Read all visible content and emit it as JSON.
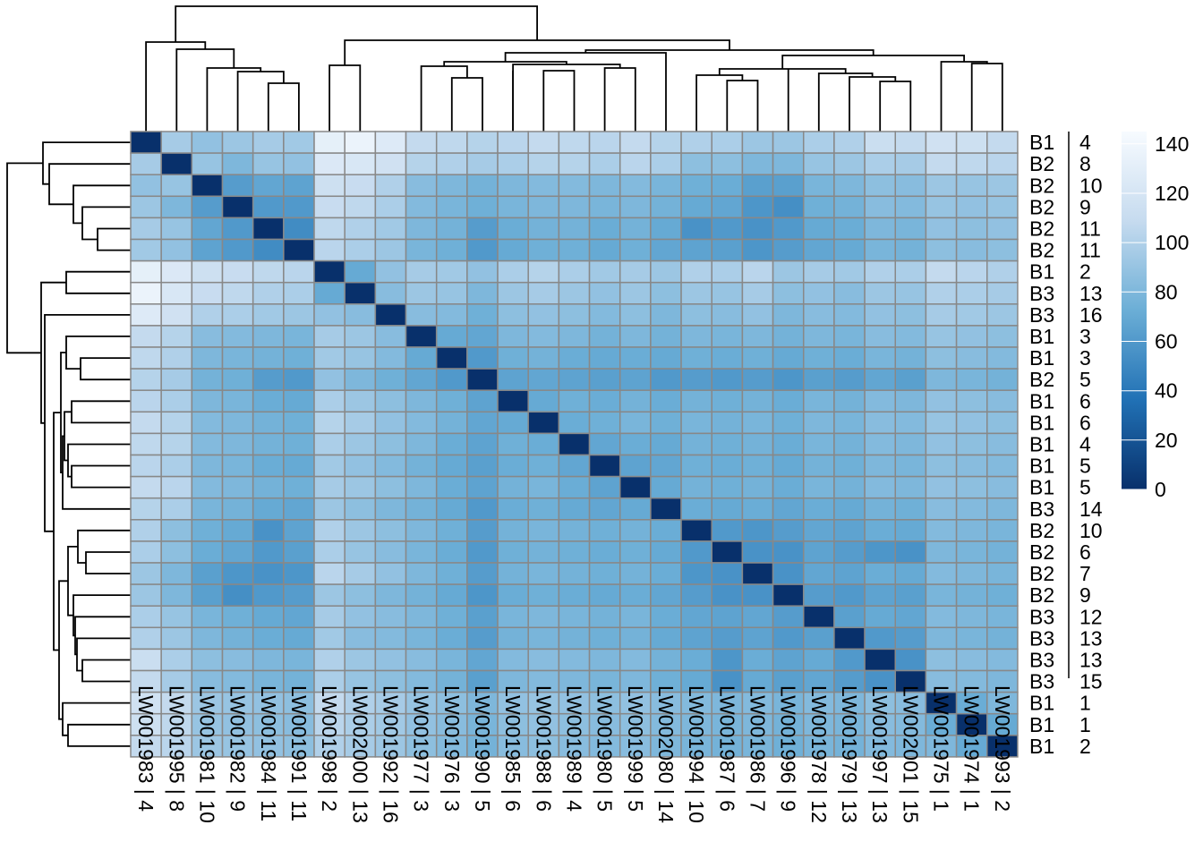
{
  "chart_data": {
    "type": "heatmap",
    "columns": [
      "LW001983 | 4",
      "LW001995 | 8",
      "LW001981 | 10",
      "LW001982 | 9",
      "LW001984 | 11",
      "LW001991 | 11",
      "LW001998 | 2",
      "LW002000 | 13",
      "LW001992 | 16",
      "LW001977 | 3",
      "LW001976 | 3",
      "LW001990 | 5",
      "LW001985 | 6",
      "LW001988 | 6",
      "LW001989 | 4",
      "LW001980 | 5",
      "LW001999 | 5",
      "LW002080 | 14",
      "LW001994 | 10",
      "LW001987 | 6",
      "LW001986 | 7",
      "LW001996 | 9",
      "LW001978 | 12",
      "LW001979 | 13",
      "LW001997 | 13",
      "LW002001 | 15",
      "LW001975 | 1",
      "LW001974 | 1",
      "LW001993 | 2"
    ],
    "rows": [
      {
        "batch": "B1",
        "num": "4"
      },
      {
        "batch": "B2",
        "num": "8"
      },
      {
        "batch": "B2",
        "num": "10"
      },
      {
        "batch": "B2",
        "num": "9"
      },
      {
        "batch": "B2",
        "num": "11"
      },
      {
        "batch": "B2",
        "num": "11"
      },
      {
        "batch": "B1",
        "num": "2"
      },
      {
        "batch": "B3",
        "num": "13"
      },
      {
        "batch": "B3",
        "num": "16"
      },
      {
        "batch": "B1",
        "num": "3"
      },
      {
        "batch": "B1",
        "num": "3"
      },
      {
        "batch": "B2",
        "num": "5"
      },
      {
        "batch": "B1",
        "num": "6"
      },
      {
        "batch": "B1",
        "num": "6"
      },
      {
        "batch": "B1",
        "num": "4"
      },
      {
        "batch": "B1",
        "num": "5"
      },
      {
        "batch": "B1",
        "num": "5"
      },
      {
        "batch": "B3",
        "num": "14"
      },
      {
        "batch": "B2",
        "num": "10"
      },
      {
        "batch": "B2",
        "num": "6"
      },
      {
        "batch": "B2",
        "num": "7"
      },
      {
        "batch": "B2",
        "num": "9"
      },
      {
        "batch": "B3",
        "num": "12"
      },
      {
        "batch": "B3",
        "num": "13"
      },
      {
        "batch": "B3",
        "num": "13"
      },
      {
        "batch": "B3",
        "num": "15"
      },
      {
        "batch": "B1",
        "num": "1"
      },
      {
        "batch": "B1",
        "num": "1"
      },
      {
        "batch": "B1",
        "num": "2"
      }
    ],
    "values": [
      [
        0,
        96,
        88,
        92,
        96,
        94,
        132,
        136,
        126,
        108,
        106,
        102,
        104,
        108,
        106,
        104,
        108,
        102,
        100,
        98,
        92,
        92,
        98,
        100,
        112,
        108,
        116,
        114,
        108
      ],
      [
        96,
        0,
        90,
        80,
        90,
        88,
        124,
        122,
        116,
        102,
        100,
        96,
        98,
        102,
        102,
        98,
        104,
        98,
        86,
        86,
        80,
        80,
        90,
        92,
        98,
        96,
        108,
        106,
        104
      ],
      [
        88,
        90,
        0,
        62,
        68,
        66,
        114,
        110,
        100,
        84,
        80,
        76,
        80,
        82,
        82,
        80,
        82,
        78,
        74,
        72,
        64,
        64,
        78,
        80,
        86,
        84,
        92,
        90,
        92
      ],
      [
        92,
        80,
        62,
        0,
        60,
        60,
        110,
        106,
        98,
        82,
        78,
        74,
        78,
        80,
        80,
        78,
        80,
        76,
        70,
        68,
        58,
        54,
        74,
        76,
        84,
        82,
        90,
        88,
        90
      ],
      [
        96,
        90,
        68,
        60,
        0,
        52,
        106,
        100,
        94,
        80,
        76,
        62,
        72,
        76,
        76,
        72,
        76,
        70,
        56,
        60,
        56,
        60,
        70,
        72,
        80,
        78,
        88,
        86,
        88
      ],
      [
        94,
        88,
        66,
        60,
        52,
        0,
        104,
        98,
        92,
        78,
        74,
        60,
        70,
        74,
        74,
        70,
        74,
        68,
        66,
        64,
        58,
        62,
        68,
        70,
        78,
        76,
        86,
        84,
        86
      ],
      [
        132,
        124,
        114,
        110,
        106,
        104,
        0,
        70,
        88,
        96,
        94,
        88,
        98,
        102,
        98,
        94,
        96,
        92,
        100,
        98,
        104,
        92,
        96,
        94,
        100,
        98,
        108,
        104,
        100
      ],
      [
        136,
        122,
        110,
        106,
        100,
        98,
        70,
        0,
        84,
        92,
        90,
        80,
        92,
        96,
        92,
        88,
        92,
        86,
        92,
        90,
        96,
        86,
        88,
        84,
        92,
        90,
        100,
        98,
        96
      ],
      [
        126,
        116,
        100,
        98,
        94,
        92,
        88,
        84,
        0,
        84,
        82,
        74,
        86,
        88,
        86,
        82,
        86,
        80,
        86,
        84,
        88,
        80,
        84,
        82,
        88,
        86,
        96,
        94,
        92
      ],
      [
        108,
        102,
        84,
        82,
        80,
        78,
        96,
        92,
        84,
        0,
        70,
        68,
        80,
        82,
        80,
        76,
        80,
        76,
        80,
        78,
        80,
        76,
        80,
        78,
        84,
        82,
        90,
        88,
        86
      ],
      [
        106,
        100,
        80,
        78,
        76,
        74,
        94,
        90,
        82,
        70,
        0,
        60,
        74,
        76,
        72,
        70,
        72,
        70,
        74,
        72,
        74,
        70,
        74,
        72,
        78,
        76,
        86,
        84,
        82
      ],
      [
        102,
        96,
        76,
        74,
        62,
        60,
        88,
        80,
        74,
        68,
        60,
        0,
        66,
        68,
        66,
        64,
        66,
        60,
        62,
        60,
        62,
        58,
        64,
        62,
        68,
        64,
        80,
        78,
        76
      ],
      [
        104,
        98,
        80,
        78,
        72,
        70,
        98,
        92,
        86,
        80,
        74,
        66,
        0,
        70,
        74,
        72,
        76,
        72,
        76,
        74,
        76,
        72,
        78,
        76,
        82,
        80,
        88,
        86,
        84
      ],
      [
        108,
        102,
        82,
        80,
        76,
        74,
        102,
        96,
        88,
        82,
        76,
        68,
        70,
        0,
        72,
        74,
        78,
        74,
        78,
        76,
        78,
        74,
        80,
        78,
        84,
        82,
        90,
        88,
        86
      ],
      [
        106,
        102,
        82,
        80,
        76,
        74,
        98,
        92,
        86,
        80,
        72,
        66,
        74,
        72,
        0,
        68,
        72,
        70,
        76,
        74,
        76,
        72,
        78,
        76,
        82,
        80,
        88,
        86,
        84
      ],
      [
        104,
        98,
        80,
        78,
        72,
        70,
        94,
        88,
        82,
        76,
        70,
        64,
        72,
        74,
        68,
        0,
        66,
        68,
        74,
        72,
        74,
        70,
        76,
        74,
        80,
        78,
        86,
        84,
        82
      ],
      [
        108,
        104,
        82,
        80,
        76,
        74,
        96,
        92,
        86,
        80,
        72,
        66,
        76,
        78,
        72,
        66,
        0,
        70,
        76,
        74,
        76,
        72,
        78,
        76,
        82,
        80,
        88,
        86,
        84
      ],
      [
        102,
        98,
        78,
        76,
        70,
        68,
        92,
        86,
        80,
        76,
        70,
        60,
        72,
        74,
        70,
        68,
        70,
        0,
        72,
        70,
        72,
        68,
        72,
        70,
        76,
        74,
        84,
        82,
        80
      ],
      [
        100,
        86,
        74,
        70,
        56,
        66,
        100,
        92,
        86,
        80,
        74,
        62,
        76,
        78,
        76,
        74,
        76,
        72,
        0,
        60,
        58,
        62,
        68,
        66,
        72,
        70,
        82,
        80,
        78
      ],
      [
        98,
        86,
        72,
        68,
        60,
        64,
        98,
        90,
        84,
        78,
        72,
        60,
        74,
        76,
        74,
        72,
        74,
        70,
        60,
        0,
        56,
        56,
        66,
        62,
        58,
        56,
        80,
        78,
        76
      ],
      [
        92,
        80,
        64,
        58,
        56,
        58,
        104,
        96,
        88,
        80,
        74,
        62,
        76,
        78,
        76,
        74,
        76,
        72,
        58,
        56,
        0,
        56,
        68,
        66,
        72,
        70,
        82,
        80,
        78
      ],
      [
        92,
        80,
        64,
        54,
        60,
        62,
        92,
        86,
        80,
        76,
        70,
        58,
        72,
        74,
        72,
        70,
        72,
        68,
        62,
        56,
        56,
        0,
        62,
        60,
        66,
        64,
        78,
        76,
        74
      ],
      [
        98,
        90,
        78,
        74,
        70,
        68,
        96,
        88,
        84,
        80,
        74,
        64,
        78,
        80,
        78,
        76,
        78,
        72,
        68,
        66,
        68,
        62,
        0,
        64,
        70,
        68,
        82,
        80,
        78
      ],
      [
        100,
        92,
        80,
        76,
        72,
        70,
        94,
        84,
        82,
        78,
        72,
        62,
        76,
        78,
        76,
        74,
        76,
        70,
        66,
        62,
        66,
        60,
        64,
        0,
        60,
        62,
        80,
        78,
        76
      ],
      [
        112,
        98,
        86,
        84,
        80,
        78,
        100,
        92,
        88,
        84,
        78,
        68,
        82,
        84,
        82,
        80,
        82,
        76,
        72,
        58,
        72,
        66,
        70,
        60,
        0,
        56,
        86,
        84,
        82
      ],
      [
        108,
        96,
        84,
        82,
        78,
        76,
        98,
        90,
        86,
        82,
        76,
        64,
        80,
        82,
        80,
        78,
        80,
        74,
        70,
        56,
        70,
        64,
        68,
        62,
        56,
        0,
        84,
        82,
        80
      ],
      [
        116,
        108,
        92,
        90,
        88,
        86,
        108,
        100,
        96,
        90,
        86,
        80,
        88,
        90,
        88,
        86,
        88,
        84,
        82,
        80,
        82,
        78,
        82,
        80,
        86,
        84,
        0,
        72,
        80
      ],
      [
        114,
        106,
        90,
        88,
        86,
        84,
        104,
        98,
        94,
        88,
        84,
        78,
        86,
        88,
        86,
        84,
        86,
        82,
        80,
        78,
        80,
        76,
        80,
        78,
        84,
        82,
        72,
        0,
        70
      ],
      [
        108,
        104,
        92,
        90,
        88,
        86,
        100,
        96,
        92,
        86,
        82,
        76,
        84,
        86,
        84,
        82,
        84,
        80,
        78,
        76,
        78,
        74,
        78,
        76,
        82,
        80,
        80,
        70,
        0
      ]
    ],
    "colorbar": {
      "ticks": [
        0,
        20,
        40,
        60,
        80,
        100,
        120,
        140
      ],
      "range": [
        0,
        145
      ]
    },
    "colors": [
      "#08306b",
      "#2171b5",
      "#6baed6",
      "#c6dbef",
      "#f7fbff"
    ],
    "cell_border": "#888888",
    "dendrograms": {
      "top": true,
      "left": true
    },
    "legend_position": "right"
  }
}
